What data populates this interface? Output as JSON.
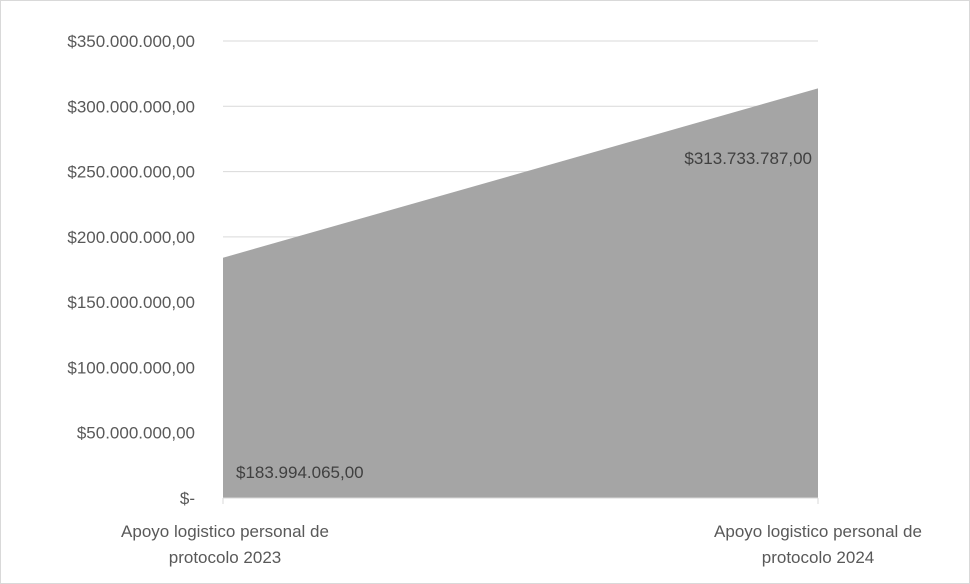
{
  "chart_data": {
    "type": "area",
    "title": "",
    "xlabel": "",
    "ylabel": "",
    "ylim": [
      0,
      350000000
    ],
    "y_ticks": [
      {
        "value": 0,
        "label": "$-"
      },
      {
        "value": 50000000,
        "label": "$50.000.000,00"
      },
      {
        "value": 100000000,
        "label": "$100.000.000,00"
      },
      {
        "value": 150000000,
        "label": "$150.000.000,00"
      },
      {
        "value": 200000000,
        "label": "$200.000.000,00"
      },
      {
        "value": 250000000,
        "label": "$250.000.000,00"
      },
      {
        "value": 300000000,
        "label": "$300.000.000,00"
      },
      {
        "value": 350000000,
        "label": "$350.000.000,00"
      }
    ],
    "categories": [
      [
        "Apoyo logistico personal de",
        "protocolo 2023"
      ],
      [
        "Apoyo logistico personal de",
        "protocolo 2024"
      ]
    ],
    "series": [
      {
        "values": [
          183994065,
          313733787
        ],
        "data_labels": [
          "$183.994.065,00",
          "$313.733.787,00"
        ]
      }
    ],
    "grid": true,
    "legend": "none",
    "colors": {
      "area": "#a5a5a5",
      "grid": "#d9d9d9",
      "axis": "#d9d9d9",
      "text": "#595959"
    }
  }
}
